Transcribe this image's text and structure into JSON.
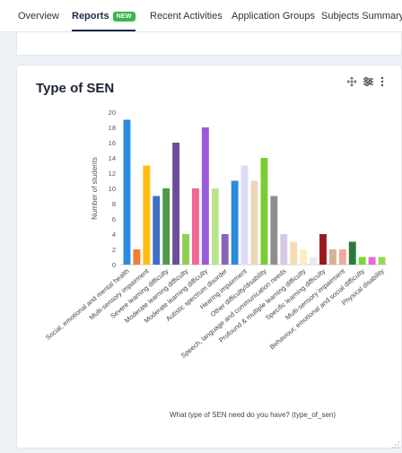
{
  "tabs": [
    {
      "label": "Overview",
      "active": false
    },
    {
      "label": "Reports",
      "active": true,
      "badge": "NEW"
    },
    {
      "label": "Recent Activities",
      "active": false
    },
    {
      "label": "Application Groups",
      "active": false
    },
    {
      "label": "Subjects Summary",
      "active": false
    }
  ],
  "card": {
    "title": "Type of SEN",
    "icons": [
      "move-icon",
      "settings-sliders-icon",
      "more-vertical-icon"
    ]
  },
  "chart_data": {
    "type": "bar",
    "ylabel": "Number of students",
    "xlabel": "What type of SEN need do you have? (type_of_sen)",
    "ylim": [
      0,
      20
    ],
    "yticks": [
      0,
      2,
      4,
      6,
      8,
      10,
      12,
      14,
      16,
      18,
      20
    ],
    "categories": [
      "Social, emotional and mental health",
      "Multi-sensory impairment",
      "Severe learning difficulty",
      "Moderate learning difficulty",
      "Moderate learning difficulty",
      "Autistic spectrum disorder",
      "Hearing impairment",
      "Other difficulty/disability",
      "Speech, language and communication needs",
      "Profound & multiple learning difficulty",
      "Specific learning difficulty",
      "Multi-sensory impairment",
      "Behaviour, emotional and social difficulty",
      "Physical disability"
    ],
    "category_label_positions": [
      0,
      2,
      4,
      6,
      8,
      10,
      12,
      14,
      16,
      18,
      20,
      22,
      24,
      26
    ],
    "bars": [
      {
        "value": 19,
        "color": "#2a8bdf"
      },
      {
        "value": 2,
        "color": "#f47c2c"
      },
      {
        "value": 13,
        "color": "#ffbe14"
      },
      {
        "value": 9,
        "color": "#3d6ec8"
      },
      {
        "value": 10,
        "color": "#4e9a48"
      },
      {
        "value": 16,
        "color": "#6a4e9a"
      },
      {
        "value": 4,
        "color": "#8fd14f"
      },
      {
        "value": 10,
        "color": "#f2669a"
      },
      {
        "value": 18,
        "color": "#9a5ad9"
      },
      {
        "value": 10,
        "color": "#b9e58c"
      },
      {
        "value": 4,
        "color": "#8a64b8"
      },
      {
        "value": 11,
        "color": "#2a8bdf"
      },
      {
        "value": 13,
        "color": "#dcdcf6"
      },
      {
        "value": 11,
        "color": "#ead8b8"
      },
      {
        "value": 14,
        "color": "#7acc35"
      },
      {
        "value": 9,
        "color": "#8e8e8e"
      },
      {
        "value": 4,
        "color": "#d8c8e8"
      },
      {
        "value": 3,
        "color": "#f5dcb4"
      },
      {
        "value": 2,
        "color": "#f6efc8"
      },
      {
        "value": 1,
        "color": "#eaeaea"
      },
      {
        "value": 4,
        "color": "#9a1a1a"
      },
      {
        "value": 2,
        "color": "#d8b09a"
      },
      {
        "value": 2,
        "color": "#f0a7a0"
      },
      {
        "value": 3,
        "color": "#2b7a3a"
      },
      {
        "value": 1,
        "color": "#7ad83a"
      },
      {
        "value": 1,
        "color": "#e86ad8"
      },
      {
        "value": 1,
        "color": "#9ad85a"
      }
    ]
  }
}
